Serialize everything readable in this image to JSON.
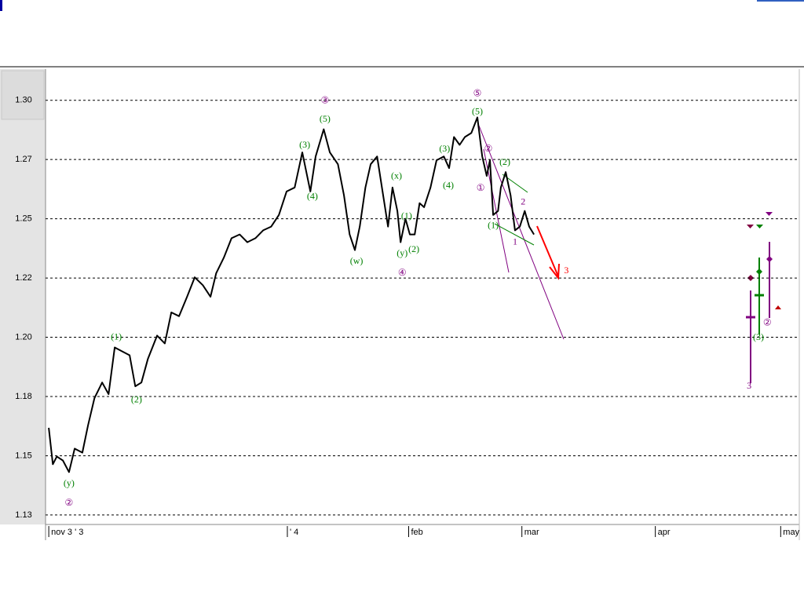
{
  "chart_data": {
    "type": "line",
    "x": [
      0,
      1,
      2,
      3.5,
      5,
      6.4,
      8.3,
      9.7,
      11.3,
      13.2,
      14.8,
      16.3,
      18.1,
      20,
      21.4,
      22.9,
      24.5,
      26.8,
      28.7,
      30.3,
      32.2,
      34.2,
      36.1,
      38.1,
      40,
      41.4,
      43.3,
      45.2,
      47.2,
      49.1,
      51.1,
      53,
      55,
      56.9,
      58.8,
      60.8,
      62.7,
      64.7,
      66,
      68,
      69.5,
      71.5,
      73,
      74.4,
      75.7,
      76.9,
      78.3,
      79.6,
      81.2,
      82.7,
      83.9,
      85,
      86.2,
      87,
      88.2,
      89.3,
      90.5,
      91.7,
      92.8,
      94.4,
      95.9,
      97.7,
      99,
      100.2,
      101.6,
      102.9,
      104.5,
      106,
      107.2,
      108.3,
      109.1,
      109.9,
      111.1,
      111.8,
      113,
      114.2,
      115.3,
      116.5,
      117.7,
      118.8,
      120
    ],
    "series": [
      {
        "color": "#000000",
        "values": [
          1.1618,
          1.1464,
          1.1497,
          1.148,
          1.1431,
          1.153,
          1.1513,
          1.1628,
          1.1743,
          1.1809,
          1.176,
          1.1957,
          1.1941,
          1.1924,
          1.1793,
          1.1809,
          1.1908,
          1.2007,
          1.1974,
          1.2105,
          1.2089,
          1.2171,
          1.2253,
          1.222,
          1.2171,
          1.227,
          1.2336,
          1.2418,
          1.2434,
          1.2401,
          1.2418,
          1.2451,
          1.2467,
          1.2516,
          1.2615,
          1.2632,
          1.278,
          1.2615,
          1.2763,
          1.2878,
          1.278,
          1.273,
          1.2599,
          1.2434,
          1.2368,
          1.2467,
          1.2632,
          1.273,
          1.2763,
          1.2599,
          1.2467,
          1.2632,
          1.2533,
          1.2401,
          1.25,
          1.2434,
          1.2434,
          1.2566,
          1.2549,
          1.2632,
          1.2747,
          1.2763,
          1.2714,
          1.2845,
          1.2812,
          1.2845,
          1.2862,
          1.2928,
          1.2763,
          1.2681,
          1.2747,
          1.2516,
          1.2533,
          1.2632,
          1.2697,
          1.2599,
          1.2451,
          1.2467,
          1.2533,
          1.2467,
          1.2434
        ]
      }
    ],
    "xlim": [
      -0.8,
      185.6
    ],
    "xticks": [
      {
        "value": 0,
        "label": "nov 3 ' 3"
      },
      {
        "value": 59,
        "label": "' 4"
      },
      {
        "value": 89,
        "label": "feb"
      },
      {
        "value": 117,
        "label": "mar"
      },
      {
        "value": 150,
        "label": "apr"
      },
      {
        "value": 181,
        "label": "may"
      }
    ],
    "ylim": [
      1.121,
      1.3125
    ],
    "yticks": [
      {
        "value": 1.125,
        "label": "1.13"
      },
      {
        "value": 1.15,
        "label": "1.15"
      },
      {
        "value": 1.175,
        "label": "1.18"
      },
      {
        "value": 1.2,
        "label": "1.20"
      },
      {
        "value": 1.225,
        "label": "1.22"
      },
      {
        "value": 1.25,
        "label": "1.25"
      },
      {
        "value": 1.275,
        "label": "1.27"
      },
      {
        "value": 1.3,
        "label": "1.30"
      }
    ],
    "grid": true,
    "annotations": [
      {
        "text": "(y)",
        "x": 5,
        "y": 1.1382,
        "color": "#008000"
      },
      {
        "text": "②",
        "x": 5,
        "y": 1.1299,
        "color": "#800080"
      },
      {
        "text": "(1)",
        "x": 16.7,
        "y": 1.2,
        "color": "#008000"
      },
      {
        "text": "(2)",
        "x": 21.7,
        "y": 1.1734,
        "color": "#008000"
      },
      {
        "text": "(3)",
        "x": 63.3,
        "y": 1.2809,
        "color": "#008000"
      },
      {
        "text": "(4)",
        "x": 65.2,
        "y": 1.2592,
        "color": "#008000"
      },
      {
        "text": "(5)",
        "x": 68.3,
        "y": 1.2918,
        "color": "#008000"
      },
      {
        "text": "③",
        "x": 68.3,
        "y": 1.2997,
        "color": "#800080"
      },
      {
        "text": "(w)",
        "x": 76.1,
        "y": 1.2319,
        "color": "#008000"
      },
      {
        "text": "(x)",
        "x": 86,
        "y": 1.2678,
        "color": "#008000"
      },
      {
        "text": "(1)",
        "x": 88.5,
        "y": 1.251,
        "color": "#008000"
      },
      {
        "text": "(y)",
        "x": 87.4,
        "y": 1.2352,
        "color": "#008000"
      },
      {
        "text": "(2)",
        "x": 90.3,
        "y": 1.2368,
        "color": "#008000"
      },
      {
        "text": "④",
        "x": 87.4,
        "y": 1.227,
        "color": "#800080"
      },
      {
        "text": "(3)",
        "x": 97.9,
        "y": 1.2793,
        "color": "#008000"
      },
      {
        "text": "(4)",
        "x": 98.8,
        "y": 1.2638,
        "color": "#008000"
      },
      {
        "text": "(5)",
        "x": 106,
        "y": 1.2951,
        "color": "#008000"
      },
      {
        "text": "⑤",
        "x": 106,
        "y": 1.3026,
        "color": "#800080"
      },
      {
        "text": "①",
        "x": 106.8,
        "y": 1.2628,
        "color": "#800080"
      },
      {
        "text": "②",
        "x": 108.7,
        "y": 1.2793,
        "color": "#800080"
      },
      {
        "text": "(2)",
        "x": 112.8,
        "y": 1.2737,
        "color": "#008000"
      },
      {
        "text": "(1)",
        "x": 109.9,
        "y": 1.247,
        "color": "#008000"
      },
      {
        "text": "2",
        "x": 117.3,
        "y": 1.2569,
        "color": "#800080"
      },
      {
        "text": "1",
        "x": 115.3,
        "y": 1.2401,
        "color": "#800080"
      },
      {
        "text": "3",
        "x": 128,
        "y": 1.228,
        "color": "#ff0000"
      },
      {
        "text": "(3)",
        "x": 175.5,
        "y": 1.1997,
        "color": "#008000"
      },
      {
        "text": "②",
        "x": 177.7,
        "y": 1.2059,
        "color": "#800080"
      },
      {
        "text": "3",
        "x": 173.2,
        "y": 1.1793,
        "color": "#800080"
      }
    ]
  }
}
